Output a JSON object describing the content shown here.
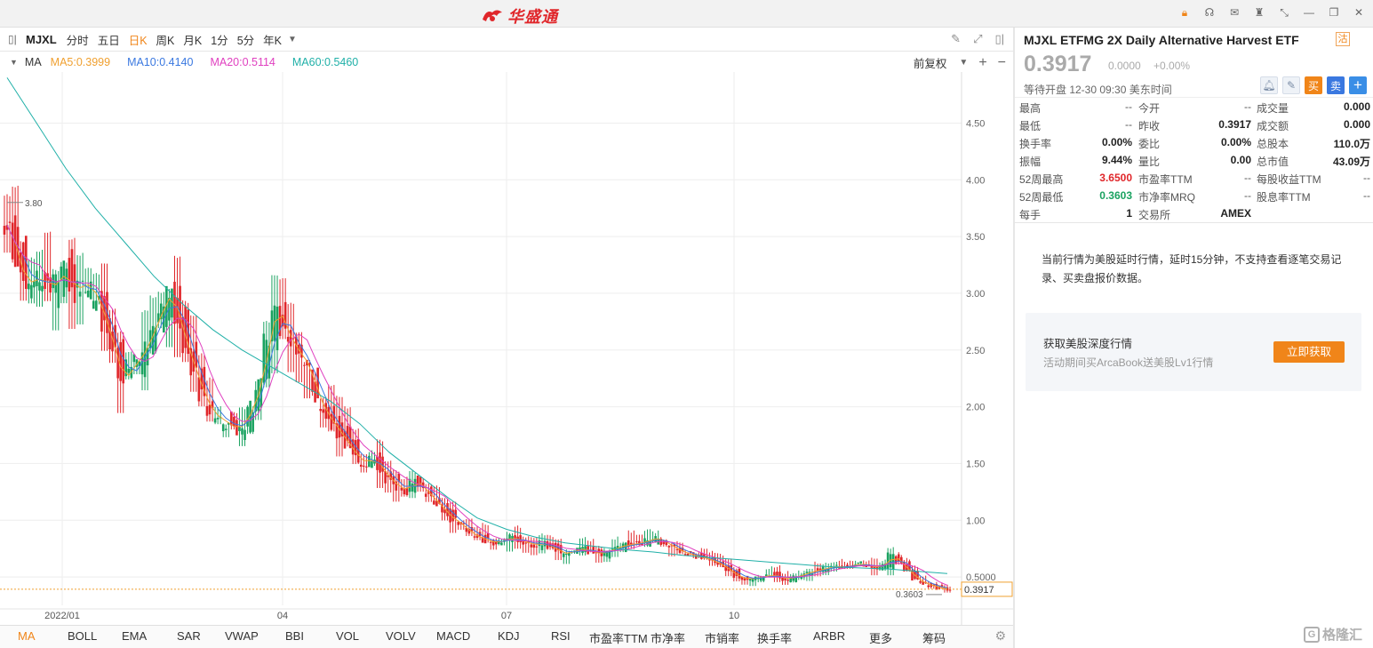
{
  "app": {
    "name": "华盛通"
  },
  "toolbar": {
    "symbol": "MJXL",
    "periods": [
      "分时",
      "五日",
      "日K",
      "周K",
      "月K",
      "1分",
      "5分",
      "年K"
    ],
    "active_period": "日K"
  },
  "ma": {
    "name": "MA",
    "items": [
      {
        "label": "MA5:0.3999",
        "color": "#f0a030"
      },
      {
        "label": "MA10:0.4140",
        "color": "#3a78e0"
      },
      {
        "label": "MA20:0.5114",
        "color": "#e040c0"
      },
      {
        "label": "MA60:0.5460",
        "color": "#20b0a8"
      }
    ],
    "adjust_label": "前复权"
  },
  "chart_data": {
    "type": "candlestick",
    "x_tick_labels": [
      "2022/01",
      "04",
      "07",
      "10"
    ],
    "y_tick_labels": [
      "4.50",
      "4.00",
      "3.50",
      "3.00",
      "2.50",
      "2.00",
      "1.50",
      "1.00",
      "0.5000"
    ],
    "ylim": [
      0.25,
      4.95
    ],
    "last_price_label": "0.3917",
    "high_marker": "3.80",
    "low_marker": "0.3603",
    "up_color": "#1aa260",
    "down_color": "#e0262a",
    "ma_colors": {
      "ma5": "#f0a030",
      "ma10": "#3a78e0",
      "ma20": "#e040c0",
      "ma60": "#20b0a8"
    },
    "ma60": [
      4.9,
      4.5,
      4.1,
      3.75,
      3.45,
      3.15,
      2.9,
      2.68,
      2.5,
      2.35,
      2.2,
      2.05,
      1.85,
      1.6,
      1.4,
      1.2,
      1.02,
      0.92,
      0.85,
      0.8,
      0.77,
      0.74,
      0.72,
      0.69,
      0.67,
      0.65,
      0.63,
      0.61,
      0.59,
      0.58,
      0.57,
      0.55,
      0.53
    ],
    "closes": [
      3.6,
      3.3,
      3.1,
      3.1,
      3.15,
      3.05,
      3.1,
      3.2,
      3.0,
      3.1,
      3.05,
      2.95,
      2.7,
      2.5,
      2.2,
      2.35,
      2.4,
      2.55,
      2.7,
      2.9,
      3.0,
      2.75,
      2.5,
      2.3,
      2.1,
      1.95,
      1.9,
      1.85,
      1.8,
      1.85,
      2.0,
      2.2,
      2.6,
      2.9,
      2.7,
      2.55,
      2.45,
      2.35,
      2.1,
      1.95,
      1.85,
      1.75,
      1.65,
      1.55,
      1.5,
      1.55,
      1.45,
      1.35,
      1.3,
      1.25,
      1.35,
      1.3,
      1.2,
      1.15,
      1.05,
      1.0,
      0.95,
      0.88,
      0.85,
      0.82,
      0.8,
      0.82,
      0.85,
      0.82,
      0.8,
      0.78,
      0.8,
      0.76,
      0.72,
      0.7,
      0.74,
      0.75,
      0.72,
      0.7,
      0.73,
      0.76,
      0.78,
      0.79,
      0.8,
      0.82,
      0.85,
      0.8,
      0.76,
      0.72,
      0.7,
      0.68,
      0.66,
      0.64,
      0.6,
      0.55,
      0.5,
      0.48,
      0.49,
      0.5,
      0.52,
      0.5,
      0.48,
      0.5,
      0.52,
      0.55,
      0.56,
      0.58,
      0.6,
      0.58,
      0.6,
      0.62,
      0.6,
      0.58,
      0.6,
      0.7,
      0.62,
      0.55,
      0.48,
      0.44,
      0.42,
      0.4,
      0.39
    ]
  },
  "bottom": {
    "indicators": [
      "MA",
      "BOLL",
      "EMA",
      "SAR",
      "VWAP",
      "BBI",
      "VOL",
      "VOLV",
      "MACD",
      "KDJ",
      "RSI",
      "市盈率TTM",
      "市净率",
      "市销率",
      "换手率",
      "ARBR",
      "更多",
      "筹码"
    ],
    "active": "MA"
  },
  "quote": {
    "title": "MJXL   ETFMG 2X Daily Alternative Harvest ETF",
    "tag": "沽",
    "price": "0.3917",
    "change": "0.0000",
    "change_pct": "+0.00%",
    "status": "等待开盘 12-30 09:30 美东时间",
    "buy_label": "买",
    "sell_label": "卖",
    "add_label": "+",
    "rows": [
      [
        {
          "l": "最高",
          "v": "--"
        },
        {
          "l": "今开",
          "v": "--"
        },
        {
          "l": "成交量",
          "v": "0.000"
        }
      ],
      [
        {
          "l": "最低",
          "v": "--"
        },
        {
          "l": "昨收",
          "v": "0.3917"
        },
        {
          "l": "成交额",
          "v": "0.000"
        }
      ],
      [
        {
          "l": "换手率",
          "v": "0.00%"
        },
        {
          "l": "委比",
          "v": "0.00%"
        },
        {
          "l": "总股本",
          "v": "110.0万"
        }
      ],
      [
        {
          "l": "振幅",
          "v": "9.44%"
        },
        {
          "l": "量比",
          "v": "0.00"
        },
        {
          "l": "总市值",
          "v": "43.09万"
        }
      ],
      [
        {
          "l": "52周最高",
          "v": "3.6500"
        },
        {
          "l": "市盈率TTM",
          "v": "--"
        },
        {
          "l": "每股收益TTM",
          "v": "--"
        }
      ],
      [
        {
          "l": "52周最低",
          "v": "0.3603"
        },
        {
          "l": "市净率MRQ",
          "v": "--"
        },
        {
          "l": "股息率TTM",
          "v": "--"
        }
      ],
      [
        {
          "l": "每手",
          "v": "1"
        },
        {
          "l": "交易所",
          "v": "AMEX"
        },
        {
          "l": "",
          "v": ""
        }
      ]
    ]
  },
  "notice": "当前行情为美股延时行情，延时15分钟，不支持查看逐笔交易记录、买卖盘报价数据。",
  "promo": {
    "title": "获取美股深度行情",
    "subtitle": "活动期间买ArcaBook送美股Lv1行情",
    "button": "立即获取"
  },
  "watermark": "格隆汇"
}
